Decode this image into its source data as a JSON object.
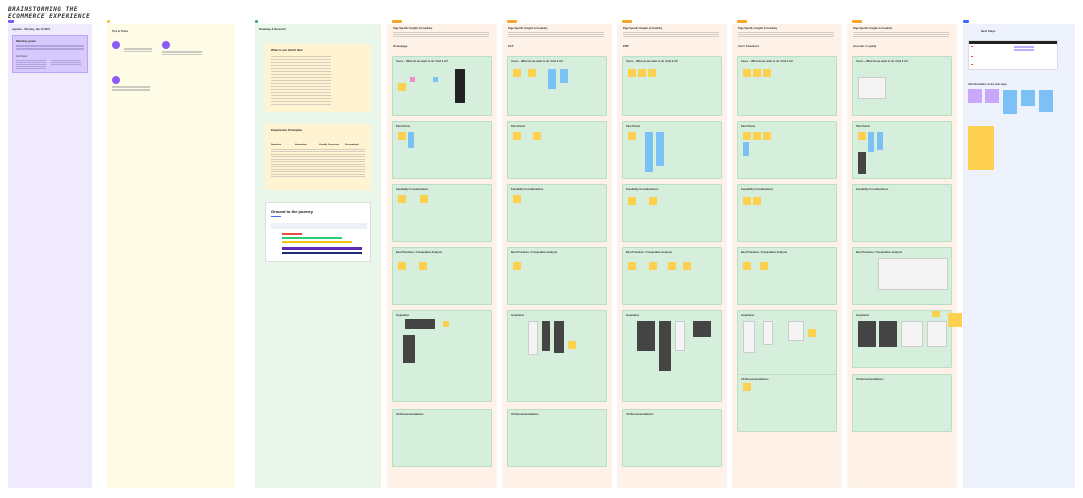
{
  "board": {
    "title_line1": "BRAINSTORMING THE",
    "title_line2": "ECOMMERCE EXPERIENCE"
  },
  "agenda": {
    "heading": "Agenda – Monday, Jan 15 2024",
    "card_title": "Meeting goals",
    "card_sub": "Our focus"
  },
  "tools": {
    "heading": "Tips & Tricks"
  },
  "roadmap": {
    "heading": "Roadmap & Research",
    "what_title": "What is our North Star",
    "principles_title": "Experience Principles",
    "principle_cols": [
      "Seamless",
      "Informative",
      "Visually Consistent",
      "Personalized"
    ],
    "journey_title": "Ground to the journey"
  },
  "pages": [
    {
      "tag": "Page Specific",
      "heading": "Page Specific Insights & Creativity",
      "name": "Homepage",
      "sections": [
        "Users – What do we want to do / find it at?",
        "Pain Points",
        "Feasibility Considerations",
        "Best Practices / Competitive Analysis",
        "Inspiration",
        "UX Recommendations"
      ]
    },
    {
      "tag": "Page Specific",
      "heading": "Page Specific Insights & Creativity",
      "name": "PLP",
      "sections": [
        "Users – What do we want to do / find it at?",
        "Pain Points",
        "Feasibility Considerations",
        "Best Practices / Competitive Analysis",
        "Inspiration",
        "UX Recommendations"
      ]
    },
    {
      "tag": "Page Specific",
      "heading": "Page Specific Insights & Creativity",
      "name": "PDP",
      "sections": [
        "Users – What do we want to do / find it at?",
        "Pain Points",
        "Feasibility Considerations",
        "Best Practices / Competitive Analysis",
        "Inspiration",
        "UX Recommendations"
      ]
    },
    {
      "tag": "Page Specific",
      "heading": "Page Specific Insights & Creativity",
      "name": "Cart / Checkout",
      "sections": [
        "Users – What do we want to do / find it at?",
        "Pain Points",
        "Feasibility Considerations",
        "Best Practices / Competitive Analysis",
        "Inspiration",
        "UX Recommendations"
      ]
    },
    {
      "tag": "Page Specific",
      "heading": "Page Specific Insights & Creativity",
      "name": "Account / Loyalty",
      "sections": [
        "Users – What do we want to do / find it at?",
        "Pain Points",
        "Feasibility Considerations",
        "Best Practices / Competitive Analysis",
        "Inspiration",
        "UX Recommendations"
      ]
    }
  ],
  "next_steps": {
    "heading": "Next Steps",
    "sub_heading": "Add Information on the next steps"
  },
  "colors": {
    "agenda": "#efeafd",
    "tools": "#fefbe6",
    "roadmap": "#e9f7ea",
    "page": "#fdf1e8",
    "section": "#d6efdc",
    "sticky_yellow": "#fdd04f",
    "sticky_blue": "#7cc1f5",
    "accent": "#7a5cfa"
  }
}
